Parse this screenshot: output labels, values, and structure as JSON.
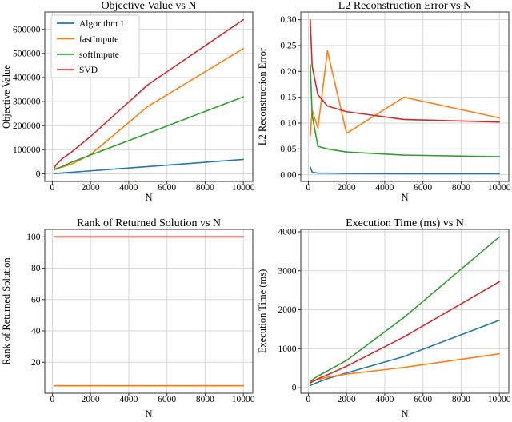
{
  "figure": {
    "background": "#ffffff",
    "grid_color": "#d6d6d6",
    "spine_color": "#333333",
    "text_color": "#000000",
    "legend_border_color": "#cccccc",
    "legend_background": "#ffffff"
  },
  "palette": {
    "algorithm_1": "#1f77b4",
    "fastImpute": "#ff7f0e",
    "softImpute": "#2ca02c",
    "svd": "#d62728"
  },
  "chart_data": [
    {
      "id": "objective-value",
      "type": "line",
      "title": "Objective Value vs N",
      "xlabel": "N",
      "ylabel": "Objective Value",
      "x": [
        100,
        200,
        500,
        1000,
        2000,
        5000,
        10000
      ],
      "series": [
        {
          "name": "Algorithm 1",
          "color": "#1f77b4",
          "values": [
            1000,
            1800,
            3500,
            6500,
            12500,
            30000,
            60000
          ]
        },
        {
          "name": "fastImpute",
          "color": "#ff7f0e",
          "values": [
            20000,
            23000,
            28000,
            40000,
            80000,
            280000,
            520000
          ]
        },
        {
          "name": "softImpute",
          "color": "#2ca02c",
          "values": [
            17000,
            20000,
            30000,
            48000,
            78000,
            168000,
            320000
          ]
        },
        {
          "name": "SVD",
          "color": "#d62728",
          "values": [
            25000,
            38000,
            62000,
            90000,
            155000,
            370000,
            640000
          ]
        }
      ],
      "xlim": [
        -395,
        10495
      ],
      "ylim": [
        -31500,
        672000
      ],
      "xticks": [
        0,
        2000,
        4000,
        6000,
        8000,
        10000
      ],
      "xtick_labels": [
        "0",
        "2000",
        "4000",
        "6000",
        "8000",
        "10000"
      ],
      "yticks": [
        0,
        100000,
        200000,
        300000,
        400000,
        500000,
        600000
      ],
      "ytick_labels": [
        "0",
        "100000",
        "200000",
        "300000",
        "400000",
        "500000",
        "600000"
      ],
      "grid": true,
      "legend": true,
      "legend_position": "upper-left"
    },
    {
      "id": "l2-reconstruction-error",
      "type": "line",
      "title": "L2 Reconstruction Error vs N",
      "xlabel": "N",
      "ylabel": "L2 Reconstruction Error",
      "x": [
        100,
        200,
        500,
        1000,
        2000,
        5000,
        10000
      ],
      "series": [
        {
          "name": "Algorithm 1",
          "color": "#1f77b4",
          "values": [
            0.015,
            0.005,
            0.003,
            0.003,
            0.0025,
            0.002,
            0.002
          ]
        },
        {
          "name": "fastImpute",
          "color": "#ff7f0e",
          "values": [
            0.075,
            0.125,
            0.09,
            0.24,
            0.08,
            0.15,
            0.11
          ]
        },
        {
          "name": "softImpute",
          "color": "#2ca02c",
          "values": [
            0.213,
            0.115,
            0.055,
            0.05,
            0.044,
            0.038,
            0.035
          ]
        },
        {
          "name": "SVD",
          "color": "#d62728",
          "values": [
            0.3,
            0.21,
            0.155,
            0.133,
            0.122,
            0.107,
            0.102
          ]
        }
      ],
      "xlim": [
        -395,
        10495
      ],
      "ylim": [
        -0.0129,
        0.3149
      ],
      "xticks": [
        0,
        2000,
        4000,
        6000,
        8000,
        10000
      ],
      "xtick_labels": [
        "0",
        "2000",
        "4000",
        "6000",
        "8000",
        "10000"
      ],
      "yticks": [
        0.0,
        0.05,
        0.1,
        0.15,
        0.2,
        0.25,
        0.3
      ],
      "ytick_labels": [
        "0.00",
        "0.05",
        "0.10",
        "0.15",
        "0.20",
        "0.25",
        "0.30"
      ],
      "grid": true,
      "legend": false
    },
    {
      "id": "rank-of-returned-solution",
      "type": "line",
      "title": "Rank of Returned Solution vs N",
      "xlabel": "N",
      "ylabel": "Rank of Returned Solution",
      "x": [
        100,
        200,
        500,
        1000,
        2000,
        5000,
        10000
      ],
      "series": [
        {
          "name": "Algorithm 1",
          "color": "#1f77b4",
          "values": [
            5,
            5,
            5,
            5,
            5,
            5,
            5
          ]
        },
        {
          "name": "fastImpute",
          "color": "#ff7f0e",
          "values": [
            5,
            5,
            5,
            5,
            5,
            5,
            5
          ]
        },
        {
          "name": "softImpute",
          "color": "#2ca02c",
          "values": [
            100,
            100,
            100,
            100,
            100,
            100,
            100
          ]
        },
        {
          "name": "SVD",
          "color": "#d62728",
          "values": [
            100,
            100,
            100,
            100,
            100,
            100,
            100
          ]
        }
      ],
      "xlim": [
        -395,
        10495
      ],
      "ylim": [
        0.25,
        104.75
      ],
      "xticks": [
        0,
        2000,
        4000,
        6000,
        8000,
        10000
      ],
      "xtick_labels": [
        "0",
        "2000",
        "4000",
        "6000",
        "8000",
        "10000"
      ],
      "yticks": [
        20,
        40,
        60,
        80,
        100
      ],
      "ytick_labels": [
        "20",
        "40",
        "60",
        "80",
        "100"
      ],
      "grid": true,
      "legend": false
    },
    {
      "id": "execution-time",
      "type": "line",
      "title": "Execution Time (ms) vs N",
      "xlabel": "N",
      "ylabel": "Execution Time (ms)",
      "x": [
        100,
        200,
        500,
        1000,
        2000,
        5000,
        10000
      ],
      "series": [
        {
          "name": "Algorithm 1",
          "color": "#1f77b4",
          "values": [
            50,
            80,
            140,
            230,
            380,
            800,
            1730
          ]
        },
        {
          "name": "fastImpute",
          "color": "#ff7f0e",
          "values": [
            130,
            160,
            210,
            270,
            350,
            520,
            870
          ]
        },
        {
          "name": "softImpute",
          "color": "#2ca02c",
          "values": [
            150,
            200,
            300,
            430,
            700,
            1800,
            3870
          ]
        },
        {
          "name": "SVD",
          "color": "#d62728",
          "values": [
            120,
            150,
            230,
            330,
            550,
            1300,
            2720
          ]
        }
      ],
      "xlim": [
        -395,
        10495
      ],
      "ylim": [
        -141,
        4061
      ],
      "xticks": [
        0,
        2000,
        4000,
        6000,
        8000,
        10000
      ],
      "xtick_labels": [
        "0",
        "2000",
        "4000",
        "6000",
        "8000",
        "10000"
      ],
      "yticks": [
        0,
        1000,
        2000,
        3000,
        4000
      ],
      "ytick_labels": [
        "0",
        "1000",
        "2000",
        "3000",
        "4000"
      ],
      "grid": true,
      "legend": false
    }
  ]
}
